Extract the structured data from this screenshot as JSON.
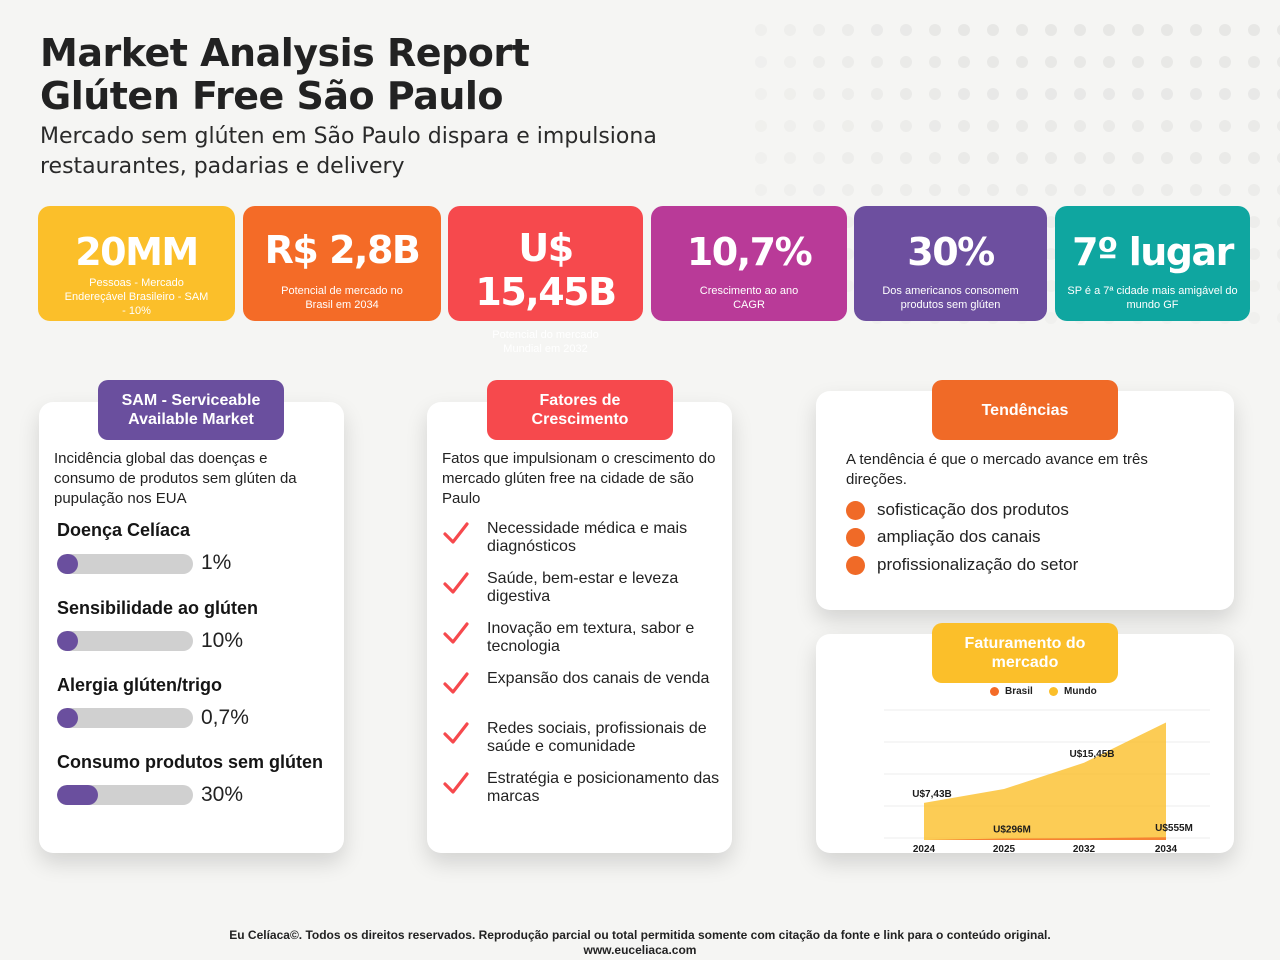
{
  "header": {
    "title_line1": "Market Analysis Report",
    "title_line2": "Glúten Free São Paulo",
    "subtitle": "Mercado sem glúten em São Paulo dispara e impulsiona restaurantes, padarias e delivery"
  },
  "stats": [
    {
      "value": "20MM",
      "caption": "Pessoas - Mercado Endereçável Brasileiro - SAM - 10%",
      "color": "#fbbf2a"
    },
    {
      "value": "R$ 2,8B",
      "caption": "Potencial de mercado no Brasil em 2034",
      "color": "#f46b27"
    },
    {
      "value": "U$ 15,45B",
      "caption": "Potencial do mercado Mundial em 2032",
      "color": "#f6494d"
    },
    {
      "value": "10,7%",
      "caption": "Crescimento ao ano CAGR",
      "color": "#b93a98"
    },
    {
      "value": "30%",
      "caption": "Dos americanos consomem produtos sem glúten",
      "color": "#6d4f9f"
    },
    {
      "value": "7º lugar",
      "caption": "SP é a 7ª cidade mais amigável do mundo GF",
      "color": "#0fa6a0"
    }
  ],
  "sam": {
    "title": "SAM - Serviceable Available Market",
    "intro": "Incidência global das doenças e consumo de produtos sem glúten da pupulação nos EUA",
    "metrics": [
      {
        "label": "Doença Celíaca",
        "value": "1%",
        "fraction": 0.01
      },
      {
        "label": "Sensibilidade ao glúten",
        "value": "10%",
        "fraction": 0.1
      },
      {
        "label": "Alergia glúten/trigo",
        "value": "0,7%",
        "fraction": 0.007
      },
      {
        "label": "Consumo produtos sem glúten",
        "value": "30%",
        "fraction": 0.3
      }
    ],
    "accent": "#6a4f9e"
  },
  "growth": {
    "title": "Fatores de Crescimento",
    "intro": "Fatos que impulsionam o crescimento do mercado glúten free na cidade de são Paulo",
    "items": [
      "Necessidade médica e mais diagnósticos",
      "Saúde, bem-estar e leveza digestiva",
      "Inovação em textura, sabor e tecnologia",
      "Expansão dos canais de venda",
      "Redes sociais, profissionais de saúde e comunidade",
      "Estratégia e posicionamento das marcas"
    ],
    "accent": "#f6494d"
  },
  "trends": {
    "title": "Tendências",
    "intro": "A tendência é que o mercado avance em três direções.",
    "items": [
      "sofisticação dos produtos",
      "ampliação dos canais",
      "profissionalização do setor"
    ],
    "accent": "#f06a27"
  },
  "revenue": {
    "title": "Faturamento do mercado",
    "accent": "#fbbf2a"
  },
  "chart_data": {
    "type": "area",
    "categories": [
      "2024",
      "2025",
      "2032",
      "2034"
    ],
    "series": [
      {
        "name": "Brasil",
        "color": "#f46b27",
        "values": [
          0.0,
          0.296,
          0.35,
          0.555
        ],
        "labels": [
          "",
          "U$296M",
          "",
          "U$555M"
        ]
      },
      {
        "name": "Mundo",
        "color": "#fbbf2a",
        "values": [
          7.43,
          10.2,
          15.45,
          23.5
        ],
        "labels": [
          "U$7,43B",
          "",
          "U$15,45B",
          ""
        ]
      }
    ],
    "legend": "top-center",
    "grid": true
  },
  "footer": {
    "line1": "Eu Celíaca©. Todos os direitos reservados. Reprodução parcial ou total permitida somente com citação da fonte e link para o conteúdo original.",
    "line2": "www.euceliaca.com"
  }
}
